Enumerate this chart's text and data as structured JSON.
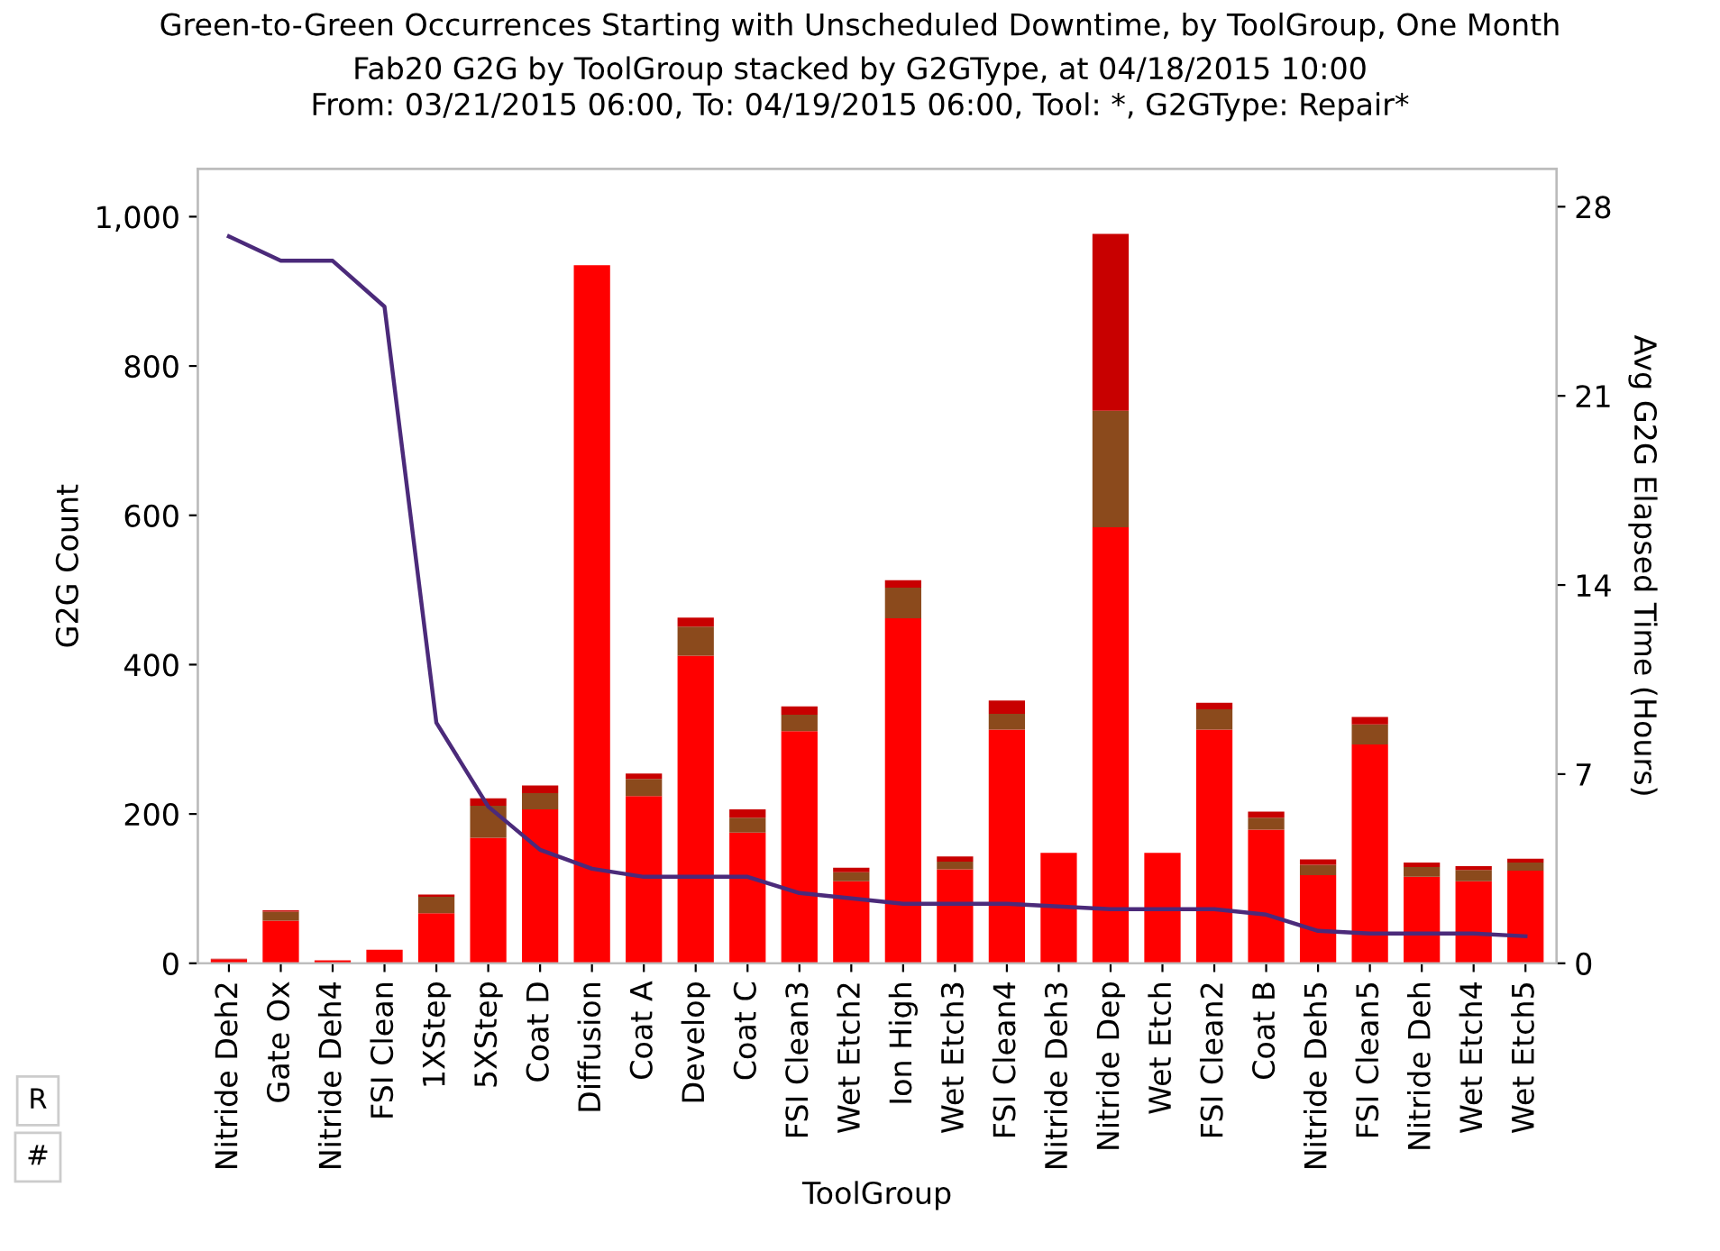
{
  "chart_data": {
    "type": "bar",
    "title": "Green-to-Green Occurrences Starting with Unscheduled Downtime, by ToolGroup, One Month",
    "subtitle": "Fab20 G2G by ToolGroup stacked by G2GType, at 04/18/2015 10:00\nFrom: 03/21/2015 06:00, To: 04/19/2015 06:00, Tool: *, G2GType: Repair*",
    "xlabel": "ToolGroup",
    "ylabel": "G2G Count",
    "y2label": "Avg G2G Elapsed Time (Hours)",
    "categories": [
      "Nitride Deh2",
      "Gate Ox",
      "Nitride Deh4",
      "FSI Clean",
      "1XStep",
      "5XStep",
      "Coat D",
      "Diffusion",
      "Coat A",
      "Develop",
      "Coat C",
      "FSI Clean3",
      "Wet Etch2",
      "Ion High",
      "Wet Etch3",
      "FSI Clean4",
      "Nitride Deh3",
      "Nitride Dep",
      "Wet Etch",
      "FSI Clean2",
      "Coat B",
      "Nitride Deh5",
      "FSI Clean5",
      "Nitride Deh",
      "Wet Etch4",
      "Wet Etch5"
    ],
    "stacked": true,
    "series": [
      {
        "color": "#ff0000",
        "values": [
          5,
          57,
          4,
          18,
          67,
          168,
          206,
          935,
          224,
          412,
          175,
          311,
          110,
          462,
          126,
          313,
          148,
          584,
          148,
          313,
          179,
          118,
          293,
          116,
          110,
          124
        ]
      },
      {
        "color": "#8b4a1c",
        "values": [
          0,
          12,
          0,
          0,
          22,
          43,
          22,
          0,
          23,
          39,
          20,
          22,
          12,
          41,
          10,
          21,
          0,
          156,
          0,
          27,
          16,
          14,
          27,
          13,
          15,
          11
        ]
      },
      {
        "color": "#c80000",
        "values": [
          1,
          2,
          0,
          0,
          3,
          10,
          10,
          0,
          7,
          12,
          11,
          11,
          6,
          10,
          7,
          18,
          0,
          237,
          0,
          9,
          8,
          7,
          10,
          6,
          5,
          5
        ]
      },
      {
        "type": "line",
        "axis": "y2",
        "color": "#4b2a7a",
        "values": [
          26.9,
          26.0,
          26.0,
          24.3,
          8.9,
          5.8,
          4.2,
          3.5,
          3.2,
          3.2,
          3.2,
          2.6,
          2.4,
          2.2,
          2.2,
          2.2,
          2.1,
          2.0,
          2.0,
          2.0,
          1.8,
          1.2,
          1.1,
          1.1,
          1.1,
          1.0
        ]
      }
    ],
    "ylim": [
      0,
      1064
    ],
    "yticks": [
      0,
      200,
      400,
      600,
      800,
      {
        "value": 1000,
        "label": "1,000"
      }
    ],
    "y2lim": [
      0,
      29.4
    ],
    "y2ticks": [
      0,
      7,
      14,
      21,
      28
    ],
    "annotations": [
      "R",
      "#"
    ],
    "grid": false,
    "legend": false
  }
}
